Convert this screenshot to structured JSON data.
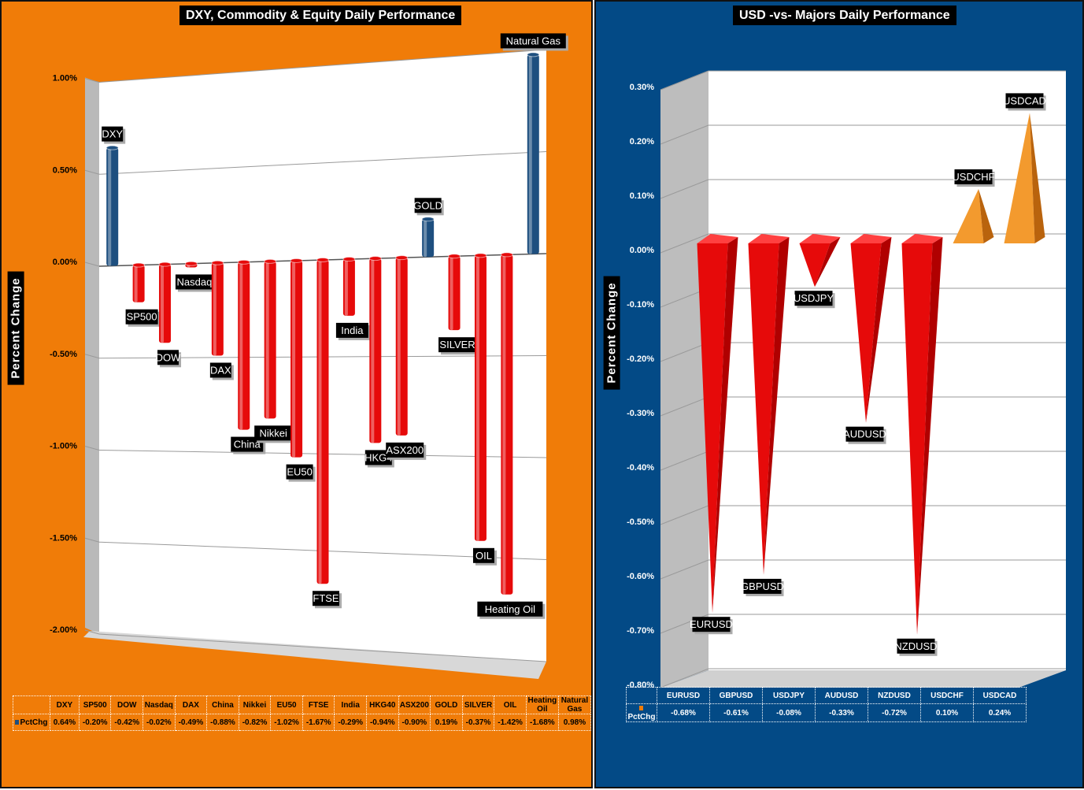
{
  "colors": {
    "left_bg": "#f07c08",
    "right_bg": "#034a86",
    "positive_bar": "#1e4f7f",
    "negative_bar": "#e60a0a",
    "up_pyramid": "#f39a2e",
    "down_pyramid": "#e60a0a"
  },
  "left": {
    "title": "DXY, Commodity & Equity Daily Performance",
    "y_title": "Percent Change",
    "series_name": "PctChg",
    "chart_data": {
      "type": "bar",
      "title": "DXY, Commodity & Equity Daily Performance",
      "ylabel": "Percent Change",
      "ylim": [
        -2.0,
        1.0
      ],
      "yticks": [
        "1.00%",
        "0.50%",
        "0.00%",
        "-0.50%",
        "-1.00%",
        "-1.50%",
        "-2.00%"
      ],
      "categories": [
        "DXY",
        "SP500",
        "DOW",
        "Nasdaq",
        "DAX",
        "China",
        "Nikkei",
        "EU50",
        "FTSE",
        "India",
        "HKG40",
        "ASX200",
        "GOLD",
        "SILVER",
        "OIL",
        "Heating Oil",
        "Natural Gas"
      ],
      "point_labels": [
        "DXY",
        "SP500",
        "DOW",
        "Nasdaq",
        "DAX",
        "China",
        "Nikkei",
        "EU50",
        "FTSE",
        "India",
        "HKG4",
        "ASX200",
        "GOLD",
        "SILVER",
        "OIL",
        "Heating Oil",
        "Natural Gas"
      ],
      "values": [
        0.64,
        -0.2,
        -0.42,
        -0.02,
        -0.49,
        -0.88,
        -0.82,
        -1.02,
        -1.67,
        -0.29,
        -0.94,
        -0.9,
        0.19,
        -0.37,
        -1.42,
        -1.68,
        0.98
      ],
      "value_labels": [
        "0.64%",
        "-0.20%",
        "-0.42%",
        "-0.02%",
        "-0.49%",
        "-0.88%",
        "-0.82%",
        "-1.02%",
        "-1.67%",
        "-0.29%",
        "-0.94%",
        "-0.90%",
        "0.19%",
        "-0.37%",
        "-1.42%",
        "-1.68%",
        "0.98%"
      ]
    }
  },
  "right": {
    "title": "USD -vs- Majors Daily Performance",
    "y_title": "Percent Change",
    "series_name": "PctChg",
    "chart_data": {
      "type": "bar",
      "title": "USD -vs- Majors Daily Performance",
      "ylabel": "Percent Change",
      "ylim": [
        -0.8,
        0.3
      ],
      "yticks": [
        "0.30%",
        "0.20%",
        "0.10%",
        "0.00%",
        "-0.10%",
        "-0.20%",
        "-0.30%",
        "-0.40%",
        "-0.50%",
        "-0.60%",
        "-0.70%",
        "-0.80%"
      ],
      "categories": [
        "EURUSD",
        "GBPUSD",
        "USDJPY",
        "AUDUSD",
        "NZDUSD",
        "USDCHF",
        "USDCAD"
      ],
      "values": [
        -0.68,
        -0.61,
        -0.08,
        -0.33,
        -0.72,
        0.1,
        0.24
      ],
      "value_labels": [
        "-0.68%",
        "-0.61%",
        "-0.08%",
        "-0.33%",
        "-0.72%",
        "0.10%",
        "0.24%"
      ]
    }
  }
}
